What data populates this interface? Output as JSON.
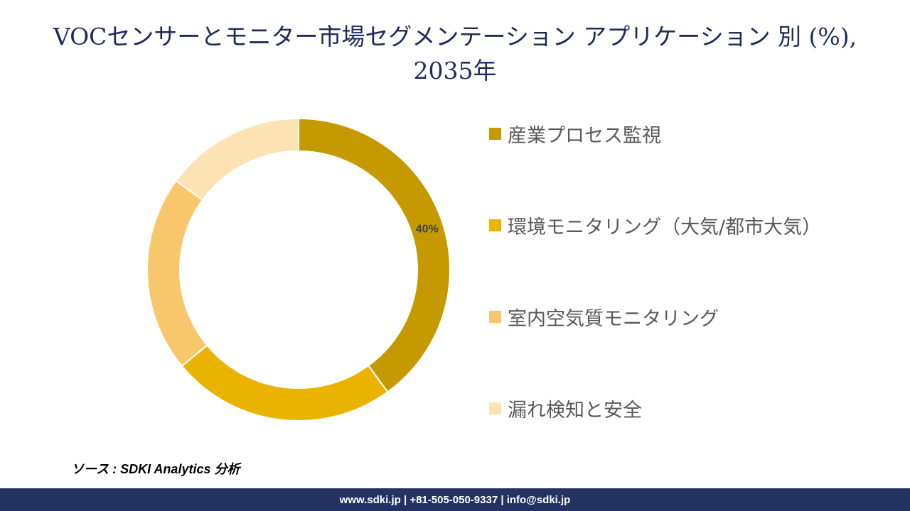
{
  "title": "VOCセンサーとモニター市場セグメンテーション アプリケーション 別 (%), 2035年",
  "chart_data": {
    "type": "pie",
    "style": "donut",
    "categories": [
      "産業プロセス監視",
      "環境モニタリング（大気/都市大気）",
      "室内空気質モニタリング",
      "漏れ検知と安全"
    ],
    "values": [
      40,
      24,
      21,
      15
    ],
    "colors": [
      "#c49a00",
      "#e9b300",
      "#f9c76b",
      "#fde2b3"
    ],
    "data_labels": [
      "40%",
      "",
      "",
      ""
    ],
    "legend_position": "right"
  },
  "source": "ソース : SDKI Analytics 分析",
  "footer": "www.sdki.jp | +81-505-050-9337 | info@sdki.jp"
}
